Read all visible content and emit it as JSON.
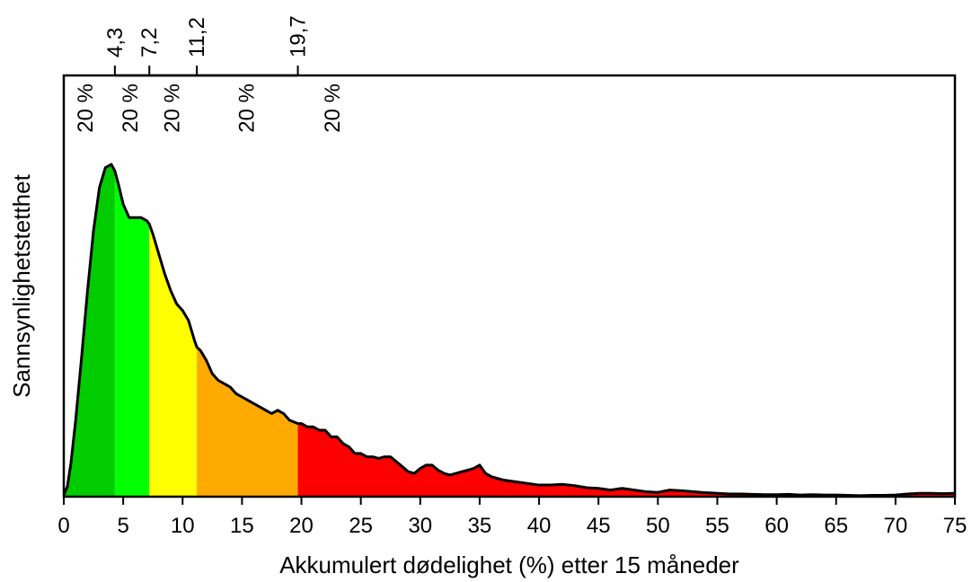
{
  "chart_data": {
    "type": "area",
    "title": "",
    "xlabel": "Akkumulert dødelighet (%) etter 15 måneder",
    "ylabel": "Sannsynlighetstetthet",
    "xlim": [
      0,
      75
    ],
    "ylim": [
      0,
      1.05
    ],
    "x_ticks": [
      "0",
      "5",
      "10",
      "15",
      "20",
      "25",
      "30",
      "35",
      "40",
      "45",
      "50",
      "55",
      "60",
      "65",
      "70",
      "75"
    ],
    "x_tick_values": [
      0,
      5,
      10,
      15,
      20,
      25,
      30,
      35,
      40,
      45,
      50,
      55,
      60,
      65,
      70,
      75
    ],
    "quantiles": {
      "values": [
        4.3,
        7.2,
        11.2,
        19.7
      ],
      "labels": [
        "4,3",
        "7,2",
        "11,2",
        "19,7"
      ]
    },
    "bands": [
      {
        "label": "20 %",
        "from": 0,
        "to": 4.3,
        "label_x": 1.8,
        "color": "#00cc00"
      },
      {
        "label": "20 %",
        "from": 4.3,
        "to": 7.2,
        "label_x": 5.6,
        "color": "#00ff00"
      },
      {
        "label": "20 %",
        "from": 7.2,
        "to": 11.2,
        "label_x": 9.1,
        "color": "#ffff00"
      },
      {
        "label": "20 %",
        "from": 11.2,
        "to": 19.7,
        "label_x": 15.4,
        "color": "#ffaa00"
      },
      {
        "label": "20 %",
        "from": 19.7,
        "to": 75,
        "label_x": 22.6,
        "color": "#ff0000"
      }
    ],
    "density": {
      "x": [
        0,
        0.3,
        0.6,
        1,
        1.5,
        2,
        2.5,
        3,
        3.5,
        4,
        4.3,
        4.6,
        5,
        5.5,
        6,
        6.5,
        7,
        7.2,
        7.5,
        8,
        8.5,
        9,
        9.5,
        10,
        10.5,
        11,
        11.2,
        11.5,
        12,
        12.5,
        13,
        13.5,
        14,
        14.5,
        15,
        15.5,
        16,
        16.5,
        17,
        17.5,
        18,
        18.5,
        19,
        19.7,
        20,
        20.5,
        21,
        21.5,
        22,
        22.5,
        23,
        23.5,
        24,
        24.5,
        25,
        25.5,
        26,
        26.5,
        27,
        27.5,
        28,
        28.5,
        29,
        29.5,
        30,
        30.5,
        31,
        31.5,
        32,
        32.5,
        33,
        33.5,
        34,
        34.5,
        35,
        35.5,
        36,
        37,
        38,
        39,
        40,
        41,
        42,
        43,
        44,
        45,
        46,
        47,
        48,
        49,
        50,
        51,
        52,
        53,
        54,
        55,
        56,
        57,
        58,
        59,
        60,
        61,
        62,
        63,
        64,
        65,
        66,
        67,
        68,
        69,
        70,
        71,
        72,
        73,
        74,
        75
      ],
      "y": [
        0.005,
        0.03,
        0.1,
        0.23,
        0.42,
        0.62,
        0.8,
        0.93,
        0.99,
        1.0,
        0.98,
        0.94,
        0.88,
        0.84,
        0.84,
        0.84,
        0.83,
        0.82,
        0.79,
        0.73,
        0.67,
        0.62,
        0.58,
        0.56,
        0.53,
        0.47,
        0.45,
        0.44,
        0.41,
        0.37,
        0.35,
        0.34,
        0.33,
        0.31,
        0.3,
        0.29,
        0.28,
        0.27,
        0.26,
        0.25,
        0.26,
        0.25,
        0.23,
        0.22,
        0.22,
        0.21,
        0.21,
        0.2,
        0.2,
        0.18,
        0.18,
        0.16,
        0.15,
        0.13,
        0.13,
        0.12,
        0.12,
        0.115,
        0.12,
        0.12,
        0.105,
        0.09,
        0.075,
        0.07,
        0.085,
        0.095,
        0.095,
        0.08,
        0.07,
        0.065,
        0.07,
        0.075,
        0.08,
        0.085,
        0.095,
        0.07,
        0.06,
        0.05,
        0.045,
        0.04,
        0.035,
        0.035,
        0.037,
        0.033,
        0.027,
        0.025,
        0.02,
        0.025,
        0.02,
        0.015,
        0.013,
        0.02,
        0.018,
        0.015,
        0.012,
        0.01,
        0.008,
        0.008,
        0.007,
        0.006,
        0.006,
        0.007,
        0.005,
        0.006,
        0.005,
        0.005,
        0.004,
        0.003,
        0.004,
        0.004,
        0.005,
        0.008,
        0.01,
        0.01,
        0.009,
        0.01
      ]
    },
    "grid": false,
    "legend": "none"
  }
}
